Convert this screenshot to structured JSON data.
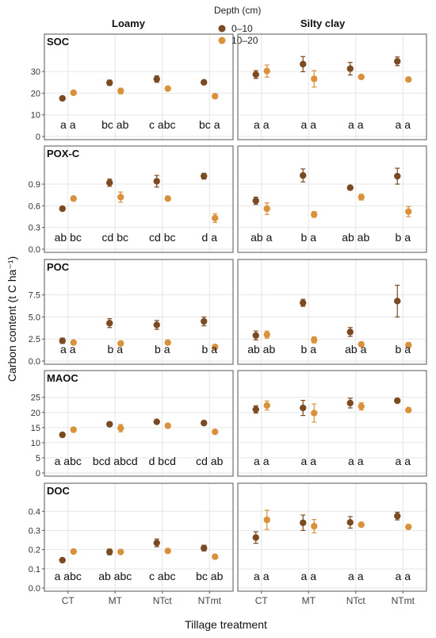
{
  "legend": {
    "title": "Depth (cm)",
    "items": [
      {
        "label": "0–10",
        "color": "#7a4a22"
      },
      {
        "label": "10–20",
        "color": "#d9923b"
      }
    ]
  },
  "axes": {
    "xlabel": "Tillage treatment",
    "ylabel": "Carbon content (t C ha⁻¹)"
  },
  "chart_data": {
    "type": "scatter",
    "error_bars": true,
    "facets": {
      "columns": [
        "Loamy",
        "Silty clay"
      ],
      "rows": [
        "SOC",
        "POX-C",
        "POC",
        "MAOC",
        "DOC"
      ]
    },
    "categories": [
      "CT",
      "MT",
      "NTct",
      "NTmt"
    ],
    "grid": true,
    "panels": [
      {
        "row": "SOC",
        "soil": "Loamy",
        "ylim": [
          0,
          37
        ],
        "yticks": [
          0,
          10,
          20,
          30
        ],
        "series": [
          {
            "name": "0–10",
            "values": [
              17.6,
              24.8,
              26.5,
              25.0
            ],
            "errors": [
              0.8,
              1.2,
              1.5,
              0.6
            ]
          },
          {
            "name": "10–20",
            "values": [
              20.2,
              21.0,
              22.1,
              18.6
            ],
            "errors": [
              0.6,
              1.3,
              0.6,
              0.5
            ]
          }
        ],
        "letters": [
          "a a",
          "bc ab",
          "c abc",
          "bc a"
        ]
      },
      {
        "row": "SOC",
        "soil": "Silty clay",
        "ylim": [
          0,
          37
        ],
        "yticks": [
          0,
          10,
          20,
          30
        ],
        "series": [
          {
            "name": "0–10",
            "values": [
              28.6,
              33.4,
              31.3,
              34.7
            ],
            "errors": [
              1.8,
              3.5,
              2.9,
              2.0
            ]
          },
          {
            "name": "10–20",
            "values": [
              30.2,
              26.6,
              27.5,
              26.3
            ],
            "errors": [
              2.8,
              3.8,
              0.8,
              0.6
            ]
          }
        ],
        "letters": [
          "a a",
          "a a",
          "a a",
          "a a"
        ]
      },
      {
        "row": "POX-C",
        "soil": "Loamy",
        "ylim": [
          0,
          1.12
        ],
        "yticks": [
          0.0,
          0.3,
          0.6,
          0.9
        ],
        "series": [
          {
            "name": "0–10",
            "values": [
              0.56,
              0.92,
              0.94,
              1.01
            ],
            "errors": [
              0.02,
              0.05,
              0.08,
              0.04
            ]
          },
          {
            "name": "10–20",
            "values": [
              0.7,
              0.72,
              0.7,
              0.43
            ],
            "errors": [
              0.03,
              0.07,
              0.02,
              0.06
            ]
          }
        ],
        "letters": [
          "ab bc",
          "cd bc",
          "cd bc",
          "d a"
        ]
      },
      {
        "row": "POX-C",
        "soil": "Silty clay",
        "ylim": [
          0,
          1.12
        ],
        "yticks": [
          0.0,
          0.3,
          0.6,
          0.9
        ],
        "series": [
          {
            "name": "0–10",
            "values": [
              0.67,
              1.02,
              0.85,
              1.01
            ],
            "errors": [
              0.05,
              0.09,
              0.01,
              0.11
            ]
          },
          {
            "name": "10–20",
            "values": [
              0.56,
              0.48,
              0.72,
              0.52
            ],
            "errors": [
              0.08,
              0.04,
              0.04,
              0.07
            ]
          }
        ],
        "letters": [
          "ab a",
          "b a",
          "ab ab",
          "b a"
        ]
      },
      {
        "row": "POC",
        "soil": "Loamy",
        "ylim": [
          0,
          9.0
        ],
        "yticks": [
          0.0,
          2.5,
          5.0,
          7.5
        ],
        "series": [
          {
            "name": "0–10",
            "values": [
              2.3,
              4.3,
              4.1,
              4.5
            ],
            "errors": [
              0.3,
              0.5,
              0.5,
              0.5
            ]
          },
          {
            "name": "10–20",
            "values": [
              2.1,
              2.0,
              2.1,
              1.6
            ],
            "errors": [
              0.15,
              0.1,
              0.1,
              0.1
            ]
          }
        ],
        "letters": [
          "a a",
          "b a",
          "b a",
          "b a"
        ]
      },
      {
        "row": "POC",
        "soil": "Silty clay",
        "ylim": [
          0,
          9.0
        ],
        "yticks": [
          0.0,
          2.5,
          5.0,
          7.5
        ],
        "series": [
          {
            "name": "0–10",
            "values": [
              2.9,
              6.6,
              3.3,
              6.8
            ],
            "errors": [
              0.5,
              0.4,
              0.5,
              1.8
            ]
          },
          {
            "name": "10–20",
            "values": [
              3.0,
              2.4,
              1.9,
              1.8
            ],
            "errors": [
              0.4,
              0.35,
              0.1,
              0.3
            ]
          }
        ],
        "letters": [
          "ab ab",
          "b a",
          "ab a",
          "b a"
        ]
      },
      {
        "row": "MAOC",
        "soil": "Loamy",
        "ylim": [
          0,
          26.5
        ],
        "yticks": [
          0,
          5,
          10,
          15,
          20,
          25
        ],
        "series": [
          {
            "name": "0–10",
            "values": [
              12.6,
              16.1,
              16.9,
              16.5
            ],
            "errors": [
              0.4,
              0.7,
              0.3,
              0.5
            ]
          },
          {
            "name": "10–20",
            "values": [
              14.3,
              14.8,
              15.6,
              13.6
            ],
            "errors": [
              0.4,
              1.2,
              0.5,
              0.4
            ]
          }
        ],
        "letters": [
          "a abc",
          "bcd abcd",
          "d bcd",
          "cd ab"
        ]
      },
      {
        "row": "MAOC",
        "soil": "Silty clay",
        "ylim": [
          0,
          26.5
        ],
        "yticks": [
          0,
          5,
          10,
          15,
          20,
          25
        ],
        "series": [
          {
            "name": "0–10",
            "values": [
              21.0,
              21.5,
              23.1,
              23.9
            ],
            "errors": [
              1.2,
              2.5,
              1.6,
              0.6
            ]
          },
          {
            "name": "10–20",
            "values": [
              22.3,
              19.8,
              22.0,
              20.8
            ],
            "errors": [
              1.5,
              3.0,
              1.2,
              0.4
            ]
          }
        ],
        "letters": [
          "a a",
          "a a",
          "a a",
          "a a"
        ]
      },
      {
        "row": "DOC",
        "soil": "Loamy",
        "ylim": [
          0,
          0.43
        ],
        "yticks": [
          0.0,
          0.1,
          0.2,
          0.3,
          0.4
        ],
        "series": [
          {
            "name": "0–10",
            "values": [
              0.145,
              0.188,
              0.235,
              0.208
            ],
            "errors": [
              0.008,
              0.015,
              0.02,
              0.015
            ]
          },
          {
            "name": "10–20",
            "values": [
              0.19,
              0.188,
              0.193,
              0.163
            ],
            "errors": [
              0.005,
              0.005,
              0.005,
              0.005
            ]
          }
        ],
        "letters": [
          "a abc",
          "ab abc",
          "c abc",
          "bc ab"
        ]
      },
      {
        "row": "DOC",
        "soil": "Silty clay",
        "ylim": [
          0,
          0.43
        ],
        "yticks": [
          0.0,
          0.1,
          0.2,
          0.3,
          0.4
        ],
        "series": [
          {
            "name": "0–10",
            "values": [
              0.263,
              0.34,
              0.342,
              0.375
            ],
            "errors": [
              0.03,
              0.04,
              0.03,
              0.02
            ]
          },
          {
            "name": "10–20",
            "values": [
              0.355,
              0.322,
              0.33,
              0.318
            ],
            "errors": [
              0.05,
              0.035,
              0.01,
              0.005
            ]
          }
        ],
        "letters": [
          "a a",
          "a a",
          "a a",
          "a a"
        ]
      }
    ]
  }
}
